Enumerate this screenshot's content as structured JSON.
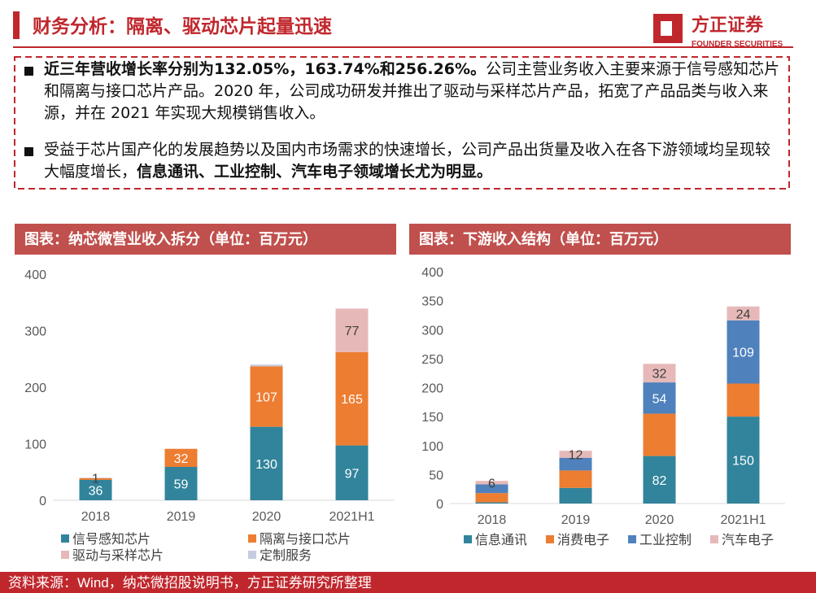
{
  "header": {
    "title": "财务分析：隔离、驱动芯片起量迅速",
    "logo": "方正证券",
    "logo_sub": "FOUNDER SECURITIES"
  },
  "bullets": [
    [
      {
        "text": "近三年营收增长率分别为132.05%，163.74%和256.26%。",
        "bold": true
      },
      {
        "text": "公司主营业务收入主要来源于信号感知芯片和隔离与接口芯片产品。2020 年，公司成功研发并推出了驱动与采样芯片产品，拓宽了产品品类与收入来源，并在 2021 年实现大规模销售收入。",
        "bold": false
      }
    ],
    [
      {
        "text": "受益于芯片国产化的发展趋势以及国内市场需求的快速增长，公司产品出货量及收入在各下游领域均呈现较大幅度增长，",
        "bold": false
      },
      {
        "text": "信息通讯、工业控制、汽车电子领域增长尤为明显。",
        "bold": true
      }
    ]
  ],
  "chart_data": [
    {
      "type": "stacked_bar",
      "title": "图表：纳芯微营业收入拆分（单位：百万元）",
      "categories": [
        "2018",
        "2019",
        "2020",
        "2021H1"
      ],
      "ylim": [
        0,
        400
      ],
      "yticks": [
        0,
        100,
        200,
        300,
        400
      ],
      "series": [
        {
          "name": "信号感知芯片",
          "color": "#31849B",
          "values": [
            36,
            59,
            130,
            97
          ],
          "value_labels": [
            "36",
            "59",
            "130",
            "97"
          ]
        },
        {
          "name": "隔离与接口芯片",
          "color": "#ED7D31",
          "values": [
            3,
            32,
            107,
            165
          ],
          "value_labels": [
            null,
            "32",
            "107",
            "165"
          ]
        },
        {
          "name": "驱动与采样芯片",
          "color": "#E6B9B8",
          "values": [
            null,
            null,
            null,
            77
          ],
          "value_labels": [
            null,
            null,
            null,
            "77"
          ]
        },
        {
          "name": "定制服务",
          "color": "#C5CCE0",
          "values": [
            1,
            null,
            3,
            null
          ],
          "value_labels": [
            "1",
            null,
            null,
            null
          ]
        }
      ]
    },
    {
      "type": "stacked_bar",
      "title": "图表：下游收入结构（单位：百万元）",
      "categories": [
        "2018",
        "2019",
        "2020",
        "2021H1"
      ],
      "ylim": [
        0,
        400
      ],
      "yticks": [
        0,
        50,
        100,
        150,
        200,
        250,
        300,
        350,
        400
      ],
      "series": [
        {
          "name": "信息通讯",
          "color": "#31849B",
          "values": [
            2,
            27,
            82,
            150
          ],
          "value_labels": [
            null,
            null,
            "82",
            "150"
          ]
        },
        {
          "name": "消费电子",
          "color": "#ED7D31",
          "values": [
            16,
            30,
            73,
            57
          ],
          "value_labels": [
            null,
            null,
            null,
            null
          ]
        },
        {
          "name": "工业控制",
          "color": "#4F81BD",
          "values": [
            15,
            22,
            54,
            109
          ],
          "value_labels": [
            null,
            null,
            "54",
            "109"
          ]
        },
        {
          "name": "汽车电子",
          "color": "#E6B9B8",
          "values": [
            6,
            12,
            32,
            24
          ],
          "value_labels": [
            "6",
            "12",
            "32",
            "24"
          ]
        }
      ]
    }
  ],
  "footer": "资料来源：Wind，纳芯微招股说明书，方正证券研究所整理"
}
